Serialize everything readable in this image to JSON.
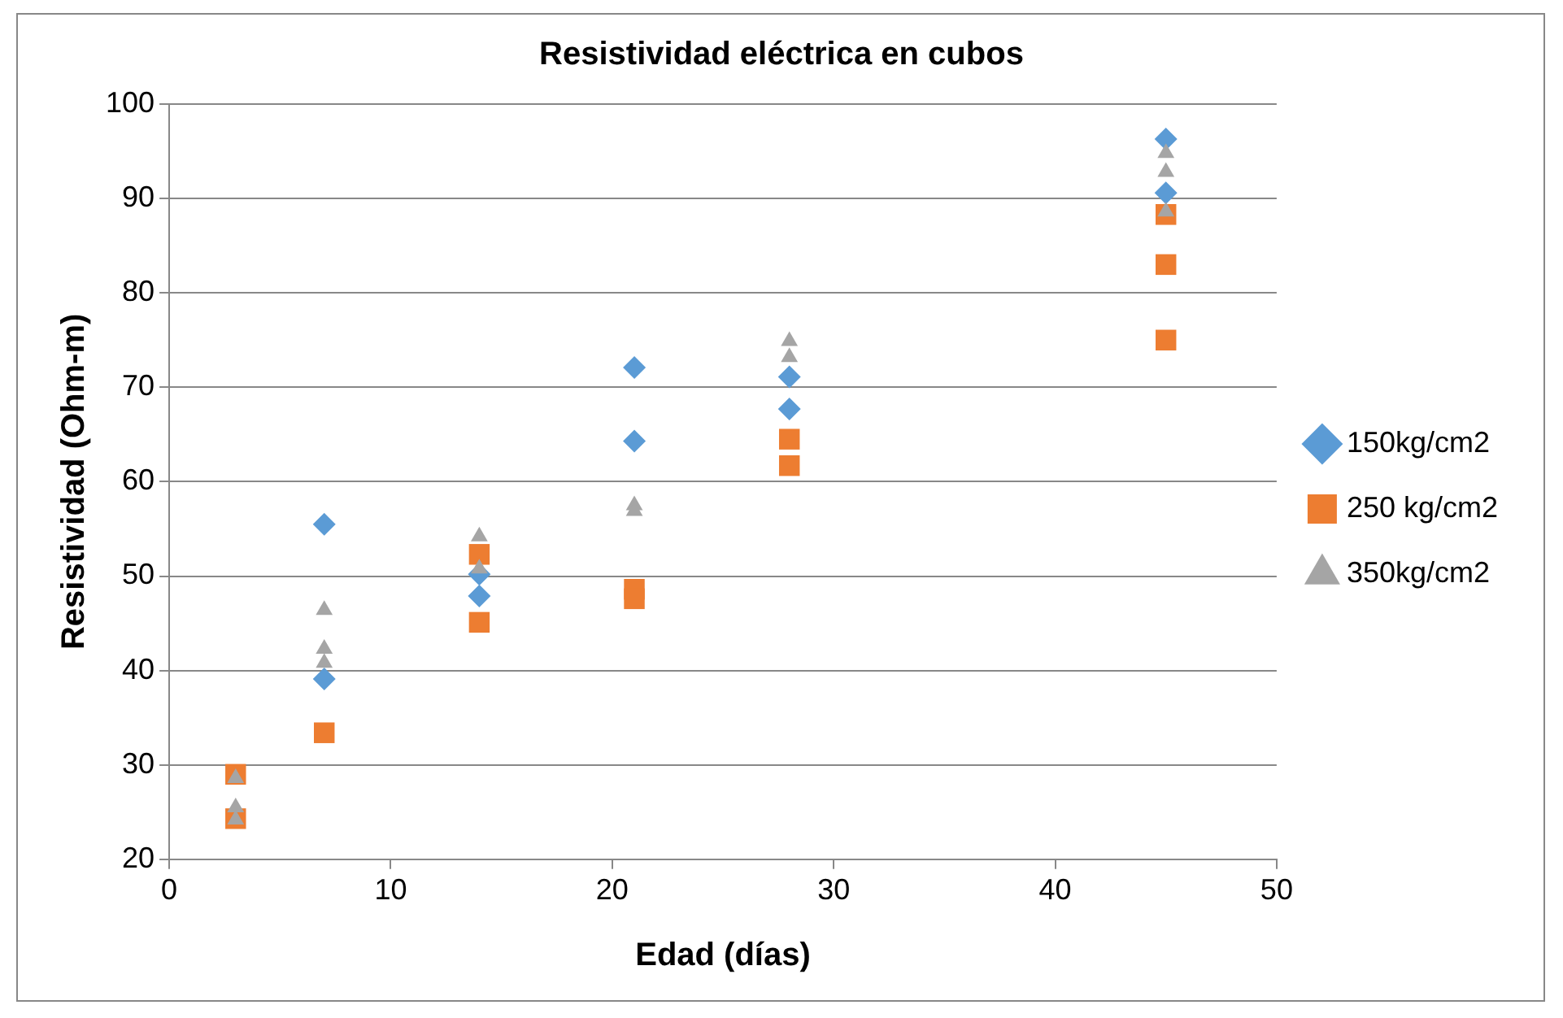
{
  "chart_data": {
    "type": "scatter",
    "title": "Resistividad eléctrica en cubos",
    "xlabel": "Edad (días)",
    "ylabel": "Resistividad (Ohm-m)",
    "xlim": [
      0,
      50
    ],
    "xticks": [
      0,
      10,
      20,
      30,
      40,
      50
    ],
    "ylim": [
      20,
      100
    ],
    "yticks": [
      20,
      30,
      40,
      50,
      60,
      70,
      80,
      90,
      100
    ],
    "grid": "y",
    "legend": "right",
    "series": [
      {
        "name": "150kg/cm2",
        "color": "#5b9bd5",
        "marker": "diamond",
        "x": [
          7,
          7,
          14,
          14,
          21,
          21,
          28,
          28,
          45,
          45
        ],
        "values": [
          55.5,
          39.1,
          47.9,
          50.2,
          72.1,
          64.3,
          71.1,
          67.7,
          96.3,
          90.6
        ]
      },
      {
        "name": "250 kg/cm2",
        "color": "#ed7d31",
        "marker": "square",
        "x": [
          3,
          3,
          7,
          14,
          14,
          21,
          21,
          28,
          28,
          45,
          45,
          45
        ],
        "values": [
          29,
          24.3,
          33.4,
          45.1,
          52.3,
          48.6,
          47.6,
          64.5,
          61.7,
          88.3,
          83,
          75
        ]
      },
      {
        "name": "350kg/cm2",
        "color": "#a5a5a5",
        "marker": "triangle",
        "x": [
          3,
          3,
          3,
          7,
          7,
          7,
          14,
          14,
          21,
          21,
          28,
          28,
          45,
          45,
          45
        ],
        "values": [
          28.6,
          25.5,
          24.2,
          46.4,
          42.3,
          40.8,
          54.2,
          50.8,
          57.5,
          56.9,
          74.9,
          73.2,
          94.8,
          92.8,
          88.6
        ]
      }
    ]
  }
}
